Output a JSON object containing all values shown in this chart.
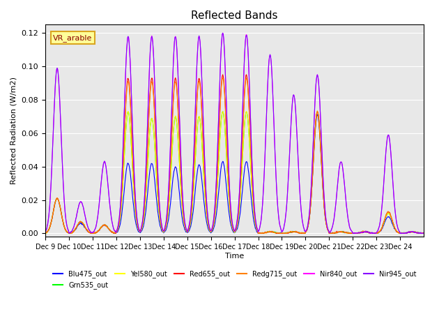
{
  "title": "Reflected Bands",
  "ylabel": "Reflected Radiation (W/m2)",
  "xlabel": "Time",
  "annotation": "VR_arable",
  "ylim": [
    -0.002,
    0.125
  ],
  "x_tick_labels": [
    "Dec 9",
    "Dec 10",
    "Dec 11",
    "Dec 12",
    "Dec 13",
    "Dec 14",
    "Dec 15",
    "Dec 16",
    "Dec 17",
    "Dec 18",
    "Dec 19",
    "Dec 20",
    "Dec 21",
    "Dec 22",
    "Dec 23",
    "Dec 24"
  ],
  "series": [
    {
      "name": "Blu475_out",
      "color": "#0000FF"
    },
    {
      "name": "Grn535_out",
      "color": "#00FF00"
    },
    {
      "name": "Yel580_out",
      "color": "#FFFF00"
    },
    {
      "name": "Red655_out",
      "color": "#FF0000"
    },
    {
      "name": "Redg715_out",
      "color": "#FF8000"
    },
    {
      "name": "Nir840_out",
      "color": "#FF00FF"
    },
    {
      "name": "Nir945_out",
      "color": "#8800FF"
    }
  ],
  "background_color": "#E8E8E8",
  "n_days": 16,
  "n_points_per_day": 48,
  "blue_peaks": [
    0.021,
    0.006,
    0.005,
    0.042,
    0.042,
    0.04,
    0.041,
    0.043,
    0.043,
    0.001,
    0.001,
    0.071,
    0.001,
    0.001,
    0.01,
    0.001
  ],
  "green_peaks": [
    0.021,
    0.007,
    0.005,
    0.073,
    0.069,
    0.07,
    0.07,
    0.073,
    0.073,
    0.001,
    0.001,
    0.073,
    0.001,
    0.001,
    0.012,
    0.001
  ],
  "yel_peaks": [
    0.021,
    0.007,
    0.005,
    0.073,
    0.069,
    0.07,
    0.07,
    0.073,
    0.073,
    0.001,
    0.001,
    0.073,
    0.001,
    0.001,
    0.012,
    0.001
  ],
  "red_peaks": [
    0.021,
    0.007,
    0.005,
    0.093,
    0.093,
    0.093,
    0.093,
    0.095,
    0.095,
    0.001,
    0.001,
    0.073,
    0.001,
    0.001,
    0.013,
    0.001
  ],
  "redg_peaks": [
    0.021,
    0.007,
    0.005,
    0.091,
    0.091,
    0.091,
    0.091,
    0.093,
    0.093,
    0.001,
    0.001,
    0.073,
    0.001,
    0.001,
    0.013,
    0.001
  ],
  "nir840_peaks": [
    0.099,
    0.019,
    0.043,
    0.118,
    0.118,
    0.118,
    0.118,
    0.12,
    0.119,
    0.107,
    0.083,
    0.095,
    0.043,
    0.001,
    0.059,
    0.001
  ],
  "nir945_peaks": [
    0.099,
    0.019,
    0.043,
    0.118,
    0.118,
    0.118,
    0.118,
    0.12,
    0.119,
    0.107,
    0.083,
    0.095,
    0.043,
    0.001,
    0.059,
    0.001
  ]
}
